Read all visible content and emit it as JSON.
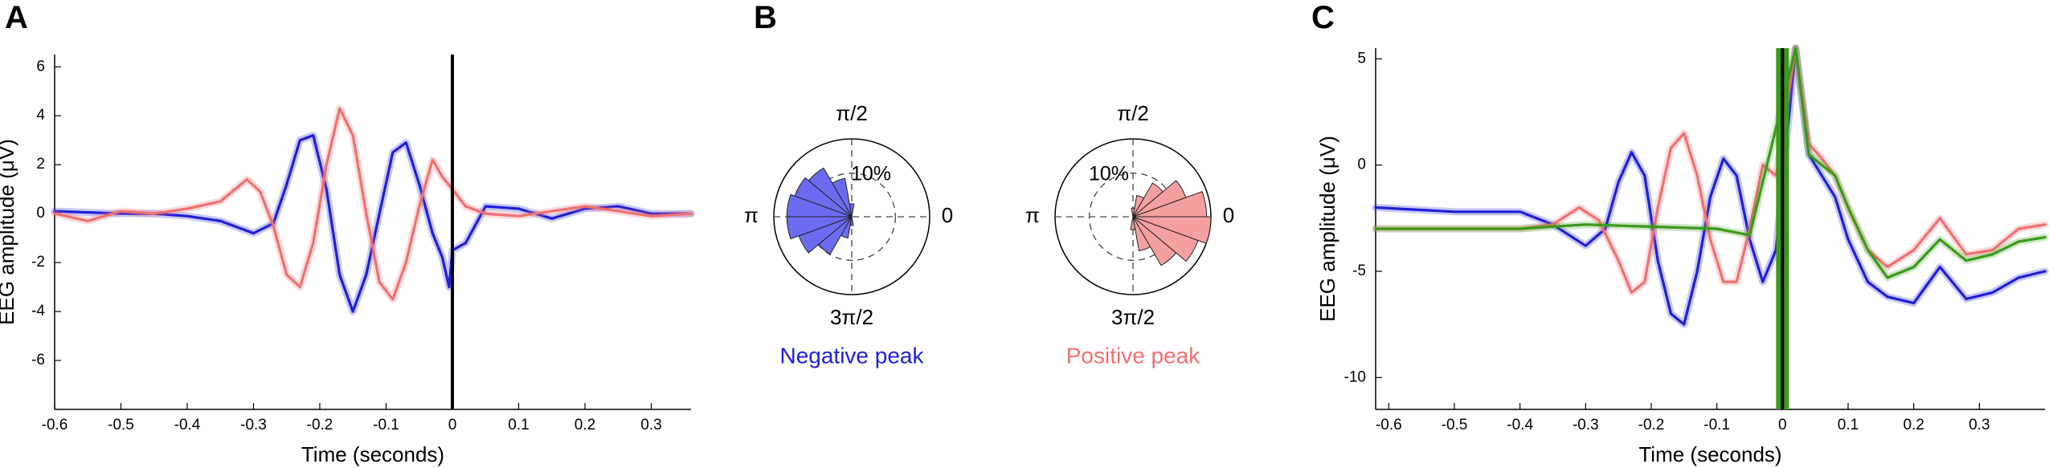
{
  "panel_letters": [
    "A",
    "B",
    "C"
  ],
  "colors": {
    "blue": "#1f1fd6",
    "red": "#f07070",
    "green": "#3a9a1a",
    "black": "#000000",
    "blue_fill": "#6b6bf0",
    "red_fill": "#f5a0a0"
  },
  "chart_data": [
    {
      "panel": "A",
      "type": "line",
      "xlabel": "Time (seconds)",
      "ylabel": "EEG amplitude (μV)",
      "xlim": [
        -0.6,
        0.36
      ],
      "ylim": [
        -8,
        6.5
      ],
      "xticks": [
        -0.6,
        -0.5,
        -0.4,
        -0.3,
        -0.2,
        -0.1,
        0,
        0.1,
        0.2,
        0.3
      ],
      "xtick_labels": [
        "-0.6",
        "-0.5",
        "-0.4",
        "-0.3",
        "-0.2",
        "-0.1",
        "0",
        "0.1",
        "0.2",
        "0.3"
      ],
      "yticks": [
        -6,
        -4,
        -2,
        0,
        2,
        4,
        6
      ],
      "ytick_labels": [
        "-6",
        "-4",
        "-2",
        "0",
        "2",
        "4",
        "6"
      ],
      "grid": false,
      "vertical_line_x": 0,
      "series": [
        {
          "color": "#1f1fd6",
          "x": [
            -0.6,
            -0.5,
            -0.45,
            -0.4,
            -0.35,
            -0.3,
            -0.27,
            -0.25,
            -0.23,
            -0.21,
            -0.19,
            -0.17,
            -0.15,
            -0.13,
            -0.11,
            -0.09,
            -0.07,
            -0.05,
            -0.03,
            -0.015,
            -0.005,
            0,
            0.02,
            0.05,
            0.1,
            0.15,
            0.2,
            0.25,
            0.3,
            0.36
          ],
          "y": [
            0.1,
            0.0,
            0.0,
            -0.1,
            -0.3,
            -0.8,
            -0.4,
            1.2,
            3.0,
            3.2,
            1.0,
            -2.5,
            -4.0,
            -2.5,
            0.0,
            2.5,
            2.9,
            1.2,
            -0.8,
            -1.8,
            -3.0,
            -1.5,
            -1.2,
            0.3,
            0.2,
            -0.2,
            0.2,
            0.3,
            0.0,
            0.0
          ]
        },
        {
          "color": "#f07070",
          "x": [
            -0.6,
            -0.55,
            -0.5,
            -0.45,
            -0.4,
            -0.35,
            -0.31,
            -0.29,
            -0.27,
            -0.25,
            -0.23,
            -0.21,
            -0.19,
            -0.17,
            -0.15,
            -0.13,
            -0.11,
            -0.09,
            -0.07,
            -0.05,
            -0.03,
            -0.015,
            0,
            0.02,
            0.05,
            0.1,
            0.15,
            0.2,
            0.25,
            0.3,
            0.36
          ],
          "y": [
            0.0,
            -0.3,
            0.1,
            0.0,
            0.2,
            0.5,
            1.4,
            0.9,
            -0.5,
            -2.5,
            -3.0,
            -1.2,
            2.0,
            4.3,
            3.2,
            0.0,
            -2.8,
            -3.5,
            -2.0,
            0.3,
            2.2,
            1.5,
            1.0,
            0.3,
            0.0,
            -0.1,
            0.1,
            0.3,
            0.1,
            -0.1,
            0.0
          ]
        }
      ]
    },
    {
      "panel": "B",
      "type": "polar-histogram",
      "angle_labels": [
        "π/2",
        "π",
        "0",
        "3π/2"
      ],
      "radial_label_left": "10%",
      "radial_label_right": "10%",
      "plots": [
        {
          "caption": "Negative peak",
          "caption_color": "#1f1fd6",
          "fill": "#6b6bf0",
          "bins_deg": [
            90,
            110,
            130,
            150,
            170,
            190,
            210,
            230,
            250,
            270
          ],
          "values_pct": [
            3,
            9,
            13,
            14,
            15,
            15,
            13,
            10,
            5,
            2
          ]
        },
        {
          "caption": "Positive peak",
          "caption_color": "#f07070",
          "fill": "#f5a0a0",
          "bins_deg": [
            270,
            290,
            310,
            330,
            350,
            10,
            30,
            50,
            70,
            90
          ],
          "values_pct": [
            3,
            8,
            13,
            16,
            18,
            17,
            13,
            9,
            5,
            2
          ]
        }
      ]
    },
    {
      "panel": "C",
      "type": "line",
      "xlabel": "Time (seconds)",
      "ylabel": "EEG amplitude (μV)",
      "xlim": [
        -0.62,
        0.4
      ],
      "ylim": [
        -11.5,
        5.5
      ],
      "xticks": [
        -0.6,
        -0.5,
        -0.4,
        -0.3,
        -0.2,
        -0.1,
        0,
        0.1,
        0.2,
        0.3
      ],
      "xtick_labels": [
        "-0.6",
        "-0.5",
        "-0.4",
        "-0.3",
        "-0.2",
        "-0.1",
        "0",
        "0.1",
        "0.2",
        "0.3"
      ],
      "yticks": [
        -10,
        -5,
        0,
        5
      ],
      "ytick_labels": [
        "-10",
        "-5",
        "0",
        "5"
      ],
      "grid": false,
      "vertical_line_x": 0,
      "series": [
        {
          "color": "#1f1fd6",
          "x": [
            -0.62,
            -0.5,
            -0.4,
            -0.35,
            -0.3,
            -0.27,
            -0.25,
            -0.23,
            -0.21,
            -0.19,
            -0.17,
            -0.15,
            -0.13,
            -0.11,
            -0.09,
            -0.07,
            -0.05,
            -0.03,
            -0.01,
            0.02,
            0.04,
            0.06,
            0.08,
            0.1,
            0.13,
            0.16,
            0.2,
            0.24,
            0.28,
            0.32,
            0.36,
            0.4
          ],
          "y": [
            -2.0,
            -2.2,
            -2.2,
            -2.8,
            -3.8,
            -3.0,
            -0.8,
            0.6,
            -0.5,
            -4.5,
            -7.0,
            -7.5,
            -5.0,
            -1.5,
            0.3,
            -0.5,
            -3.5,
            -5.5,
            -4.0,
            5.5,
            0.5,
            -0.5,
            -1.5,
            -3.5,
            -5.5,
            -6.2,
            -6.5,
            -4.8,
            -6.3,
            -6.0,
            -5.3,
            -5.0
          ]
        },
        {
          "color": "#f07070",
          "x": [
            -0.62,
            -0.5,
            -0.4,
            -0.35,
            -0.31,
            -0.28,
            -0.25,
            -0.23,
            -0.21,
            -0.19,
            -0.17,
            -0.15,
            -0.13,
            -0.11,
            -0.09,
            -0.07,
            -0.05,
            -0.03,
            -0.01,
            0.02,
            0.04,
            0.06,
            0.08,
            0.1,
            0.13,
            0.16,
            0.2,
            0.24,
            0.28,
            0.32,
            0.36,
            0.4
          ],
          "y": [
            -3.0,
            -3.0,
            -3.0,
            -2.8,
            -2.0,
            -2.6,
            -4.5,
            -6.0,
            -5.5,
            -2.0,
            0.8,
            1.5,
            -0.5,
            -3.5,
            -5.5,
            -5.5,
            -3.0,
            0.0,
            -0.5,
            5.5,
            1.0,
            0.3,
            -0.5,
            -2.0,
            -4.0,
            -4.8,
            -4.0,
            -2.5,
            -4.2,
            -4.0,
            -3.0,
            -2.8
          ]
        },
        {
          "color": "#3a9a1a",
          "x": [
            -0.62,
            -0.5,
            -0.4,
            -0.3,
            -0.2,
            -0.1,
            -0.05,
            0.02,
            0.04,
            0.06,
            0.08,
            0.1,
            0.13,
            0.16,
            0.2,
            0.24,
            0.28,
            0.32,
            0.36,
            0.4
          ],
          "y": [
            -3.0,
            -3.0,
            -3.0,
            -2.8,
            -2.9,
            -3.0,
            -3.3,
            5.5,
            0.5,
            0.0,
            -0.5,
            -2.0,
            -4.0,
            -5.3,
            -4.8,
            -3.5,
            -4.5,
            -4.2,
            -3.6,
            -3.4
          ]
        }
      ]
    }
  ]
}
